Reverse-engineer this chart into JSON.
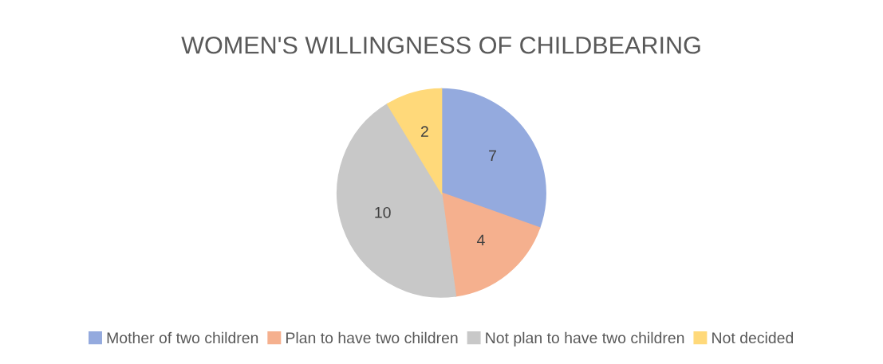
{
  "chart_data": {
    "type": "pie",
    "title": "WOMEN'S WILLINGNESS OF CHILDBEARING",
    "categories": [
      "Mother of two children",
      "Plan to have two children",
      "Not plan to have two children",
      "Not decided"
    ],
    "values": [
      7,
      4,
      10,
      2
    ],
    "colors": [
      "#94aade",
      "#f5b08e",
      "#c8c8c8",
      "#ffd97a"
    ],
    "data_labels": true,
    "legend": "bottom"
  }
}
